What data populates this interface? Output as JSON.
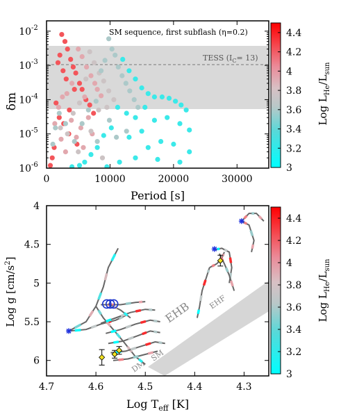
{
  "chart_data": [
    {
      "type": "scatter",
      "title": "SM sequence, first subflash (η=0.2)",
      "xlabel": "Period [s]",
      "ylabel": "δm",
      "xlim": [
        0,
        35000
      ],
      "ylim": [
        1e-06,
        0.02
      ],
      "yscale": "log",
      "x_ticks": [
        "0",
        "10000",
        "20000",
        "30000"
      ],
      "y_ticks": [
        {
          "base": "10",
          "exp": "-2"
        },
        {
          "base": "10",
          "exp": "-3"
        },
        {
          "base": "10",
          "exp": "-4"
        },
        {
          "base": "10",
          "exp": "-5"
        },
        {
          "base": "10",
          "exp": "-6"
        }
      ],
      "band": {
        "from": 5e-05,
        "to": 0.0035
      },
      "threshold": {
        "label": "TESS (I",
        "sub": "C",
        "label_tail": "= 13)",
        "value": 0.001
      },
      "colorbar": {
        "label": "Log L",
        "label_sub": "He",
        "label_mid": "/L",
        "label_sub2": "sun",
        "range": [
          3.0,
          4.5
        ],
        "ticks": [
          "4.4",
          "4.2",
          "4",
          "3.8",
          "3.6",
          "3.4",
          "3.2",
          "3"
        ],
        "colors": [
          "#00ffff",
          "#94c9c9",
          "#c8c8c8",
          "#e8a0a8",
          "#ff0000"
        ]
      },
      "series": [
        {
          "lum": 4.3,
          "points": [
            [
              2400,
              0.008
            ],
            [
              2900,
              0.005
            ],
            [
              3300,
              0.003
            ],
            [
              2100,
              0.002
            ],
            [
              3800,
              0.0015
            ],
            [
              4200,
              0.0009
            ],
            [
              4600,
              0.0006
            ],
            [
              2600,
              0.0007
            ],
            [
              5200,
              0.0003
            ],
            [
              3100,
              0.0004
            ],
            [
              1800,
              0.0012
            ],
            [
              5600,
              0.0002
            ],
            [
              6200,
              0.0001
            ],
            [
              1500,
              8e-05
            ],
            [
              2000,
              3e-05
            ],
            [
              2700,
              2e-05
            ],
            [
              3500,
              1e-05
            ],
            [
              4800,
              5e-06
            ],
            [
              1200,
              4e-06
            ],
            [
              900,
              2e-06
            ],
            [
              600,
              1.2e-06
            ],
            [
              6800,
              7e-05
            ],
            [
              7400,
              4e-05
            ],
            [
              4400,
              0.0002
            ],
            [
              3600,
              5e-05
            ]
          ]
        },
        {
          "lum": 4.05,
          "points": [
            [
              5000,
              0.003
            ],
            [
              5600,
              0.0018
            ],
            [
              6300,
              0.0009
            ],
            [
              7000,
              0.0005
            ],
            [
              7600,
              0.0003
            ],
            [
              4000,
              0.0003
            ],
            [
              3200,
              0.00015
            ],
            [
              6000,
              0.00012
            ],
            [
              8000,
              0.0002
            ],
            [
              8600,
              0.00013
            ],
            [
              2500,
              0.00012
            ],
            [
              1900,
              6e-05
            ],
            [
              1300,
              2e-05
            ],
            [
              3900,
              2.5e-05
            ],
            [
              5400,
              1.5e-05
            ],
            [
              4700,
              8e-06
            ],
            [
              6600,
              3e-05
            ],
            [
              2300,
              7e-06
            ],
            [
              3000,
              3e-06
            ],
            [
              5800,
              4e-06
            ],
            [
              7200,
              1e-05
            ]
          ]
        },
        {
          "lum": 3.8,
          "points": [
            [
              6800,
              0.0025
            ],
            [
              7500,
              0.0012
            ],
            [
              8300,
              0.0006
            ],
            [
              9000,
              0.00035
            ],
            [
              9800,
              0.00018
            ],
            [
              10600,
              0.0001
            ],
            [
              6200,
              0.0004
            ],
            [
              5200,
              8e-05
            ],
            [
              4200,
              4e-05
            ],
            [
              8200,
              5e-05
            ],
            [
              7000,
              1.2e-05
            ],
            [
              9500,
              6e-05
            ],
            [
              3300,
              1e-05
            ],
            [
              5000,
              3e-06
            ],
            [
              8800,
              2e-06
            ],
            [
              2200,
              1.5e-05
            ]
          ]
        },
        {
          "lum": 3.55,
          "points": [
            [
              9800,
              0.006
            ],
            [
              10300,
              0.003
            ],
            [
              10800,
              0.002
            ],
            [
              11300,
              0.0009
            ],
            [
              11900,
              0.0005
            ],
            [
              9200,
              0.0014
            ],
            [
              12500,
              0.0003
            ],
            [
              13100,
              0.00018
            ],
            [
              13800,
              0.0001
            ],
            [
              8600,
              0.0007
            ],
            [
              7800,
              9e-05
            ],
            [
              6600,
              5e-05
            ],
            [
              9900,
              2.5e-05
            ],
            [
              5600,
              2e-05
            ],
            [
              4400,
              6e-06
            ],
            [
              3000,
              2e-05
            ],
            [
              2000,
              4e-05
            ],
            [
              1400,
              1.5e-05
            ],
            [
              1000,
              5e-06
            ],
            [
              8000,
              6e-06
            ],
            [
              11000,
              8e-06
            ],
            [
              12600,
              1.2e-05
            ],
            [
              14400,
              6e-05
            ]
          ]
        },
        {
          "lum": 3.15,
          "points": [
            [
              12000,
              0.0015
            ],
            [
              13000,
              0.0007
            ],
            [
              14000,
              0.0004
            ],
            [
              15000,
              0.00022
            ],
            [
              16000,
              0.00015
            ],
            [
              17000,
              0.00012
            ],
            [
              18200,
              0.00012
            ],
            [
              19300,
              0.00011
            ],
            [
              20300,
              9e-05
            ],
            [
              21200,
              7e-05
            ],
            [
              22000,
              5e-05
            ],
            [
              15500,
              6e-05
            ],
            [
              14000,
              3e-05
            ],
            [
              12600,
              4e-05
            ],
            [
              11200,
              6e-05
            ],
            [
              10200,
              1.5e-05
            ],
            [
              9000,
              9e-06
            ],
            [
              8000,
              4e-06
            ],
            [
              7000,
              2.5e-06
            ],
            [
              6000,
              1.5e-06
            ],
            [
              13000,
              8e-06
            ],
            [
              15000,
              1.2e-05
            ],
            [
              17000,
              2.5e-05
            ],
            [
              19000,
              3e-05
            ],
            [
              21000,
              2e-05
            ],
            [
              22500,
              1.3e-05
            ],
            [
              18000,
              6e-06
            ],
            [
              16000,
              4e-06
            ],
            [
              20000,
              5e-06
            ],
            [
              22500,
              3e-06
            ],
            [
              11500,
              1.5e-06
            ],
            [
              9500,
              1.1e-06
            ],
            [
              14000,
              2e-06
            ],
            [
              17500,
              1.8e-06
            ],
            [
              21000,
              1.5e-06
            ],
            [
              5200,
              1.2e-06
            ],
            [
              4000,
              1.1e-06
            ]
          ]
        }
      ]
    },
    {
      "type": "line",
      "xlabel": "Log T",
      "xlabel_sub": "eff",
      "xlabel_tail": " [K]",
      "ylabel": "Log g [cm/s",
      "ylabel_sup": "2",
      "ylabel_tail": "]",
      "xlim": [
        4.7,
        4.25
      ],
      "ylim": [
        6.2,
        4.0
      ],
      "x_ticks": [
        "4.7",
        "4.6",
        "4.5",
        "4.4",
        "4.3"
      ],
      "y_ticks": [
        "4",
        "4.5",
        "5",
        "5.5",
        "6"
      ],
      "band_labels": {
        "ehb": "EHB",
        "ehf": "EHF",
        "dm": "DM",
        "sm": "SM"
      },
      "colorbar": {
        "label": "Log L",
        "label_sub": "He",
        "label_mid": "/L",
        "label_sub2": "sun",
        "range": [
          3.0,
          4.5
        ],
        "ticks": [
          "4.4",
          "4.2",
          "4",
          "3.8",
          "3.6",
          "3.4",
          "3.2",
          "3"
        ]
      },
      "tracks": [
        [
          [
            4.655,
            5.62
          ],
          [
            4.62,
            5.5
          ],
          [
            4.6,
            5.3
          ],
          [
            4.585,
            5.05
          ],
          [
            4.575,
            4.8
          ],
          [
            4.555,
            4.55
          ]
        ],
        [
          [
            4.655,
            5.62
          ],
          [
            4.62,
            5.6
          ],
          [
            4.59,
            5.53
          ],
          [
            4.56,
            5.48
          ],
          [
            4.54,
            5.42
          ]
        ],
        [
          [
            4.6,
            5.3
          ],
          [
            4.585,
            5.45
          ],
          [
            4.565,
            5.6
          ],
          [
            4.545,
            5.75
          ],
          [
            4.52,
            5.95
          ],
          [
            4.5,
            6.05
          ]
        ],
        [
          [
            4.59,
            5.52
          ],
          [
            4.56,
            5.45
          ],
          [
            4.53,
            5.38
          ],
          [
            4.5,
            5.34
          ],
          [
            4.48,
            5.35
          ]
        ],
        [
          [
            4.58,
            5.65
          ],
          [
            4.55,
            5.6
          ],
          [
            4.52,
            5.53
          ],
          [
            4.49,
            5.48
          ],
          [
            4.47,
            5.5
          ]
        ],
        [
          [
            4.575,
            5.78
          ],
          [
            4.545,
            5.75
          ],
          [
            4.515,
            5.68
          ],
          [
            4.49,
            5.62
          ],
          [
            4.47,
            5.64
          ]
        ],
        [
          [
            4.57,
            5.9
          ],
          [
            4.54,
            5.88
          ],
          [
            4.51,
            5.82
          ],
          [
            4.48,
            5.76
          ],
          [
            4.46,
            5.78
          ]
        ],
        [
          [
            4.565,
            6.0
          ],
          [
            4.535,
            5.98
          ],
          [
            4.505,
            5.93
          ],
          [
            4.475,
            5.88
          ]
        ],
        [
          [
            4.59,
            5.28
          ],
          [
            4.55,
            5.28
          ],
          [
            4.52,
            5.25
          ],
          [
            4.5,
            5.24
          ]
        ],
        [
          [
            4.575,
            5.27
          ],
          [
            4.55,
            5.35
          ],
          [
            4.53,
            5.45
          ]
        ],
        [
          [
            4.395,
            5.45
          ],
          [
            4.39,
            5.3
          ],
          [
            4.385,
            5.1
          ],
          [
            4.375,
            4.9
          ],
          [
            4.37,
            4.8
          ]
        ],
        [
          [
            4.37,
            4.8
          ],
          [
            4.355,
            4.75
          ],
          [
            4.345,
            4.68
          ],
          [
            4.34,
            4.6
          ]
        ],
        [
          [
            4.36,
            4.57
          ],
          [
            4.345,
            4.55
          ],
          [
            4.33,
            4.6
          ],
          [
            4.325,
            4.8
          ],
          [
            4.33,
            5.0
          ]
        ],
        [
          [
            4.305,
            4.2
          ],
          [
            4.29,
            4.25
          ],
          [
            4.28,
            4.45
          ],
          [
            4.285,
            4.6
          ]
        ],
        [
          [
            4.305,
            4.2
          ],
          [
            4.29,
            4.1
          ],
          [
            4.275,
            4.1
          ],
          [
            4.26,
            4.2
          ]
        ],
        [
          [
            4.35,
            4.62
          ],
          [
            4.34,
            4.75
          ],
          [
            4.33,
            4.9
          ],
          [
            4.32,
            5.1
          ]
        ]
      ],
      "stars": [
        [
          4.655,
          5.62
        ],
        [
          4.36,
          4.56
        ],
        [
          4.305,
          4.2
        ]
      ],
      "circles": [
        [
          4.578,
          5.27
        ],
        [
          4.571,
          5.27
        ],
        [
          4.564,
          5.27
        ]
      ],
      "diamonds": [
        [
          4.588,
          5.96,
          0.1
        ],
        [
          4.562,
          5.92,
          0.05
        ],
        [
          4.553,
          5.87,
          0.05
        ],
        [
          4.348,
          4.71,
          0.07
        ]
      ]
    }
  ]
}
